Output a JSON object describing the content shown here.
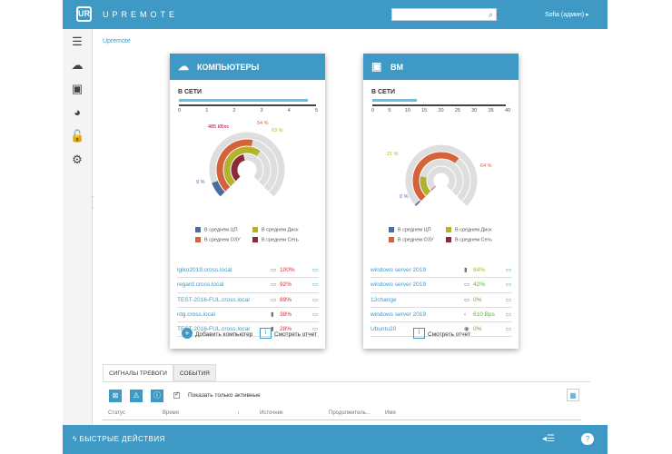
{
  "app": {
    "brand": "UPREMOTE",
    "logo": "UR",
    "user": "Sofia (админ)"
  },
  "breadcrumb": "Upremote",
  "comp_card": {
    "title": "КОМПЬЮТЕРЫ",
    "status": "В СЕТИ",
    "ticks": [
      "0",
      "1",
      "2",
      "3",
      "4",
      "5"
    ],
    "online_fraction": 0.94,
    "labels": {
      "net": "485 КБпс",
      "cpu": "9 %",
      "ram": "54 %",
      "disk": "63 %"
    },
    "legend": [
      "В среднем ЦП",
      "В среднем Диск",
      "В среднем ОЗУ",
      "В среднем Сеть"
    ],
    "rows": [
      {
        "name": "lgiko2019.cross.local",
        "val": "100%"
      },
      {
        "name": "regard.cross.local",
        "val": "92%"
      },
      {
        "name": "TEST-2016-FUL.cross.local",
        "val": "89%"
      },
      {
        "name": "rdg.cross.local",
        "val": "38%"
      },
      {
        "name": "TEST-2016-FUL.cross.local",
        "val": "28%"
      }
    ],
    "add": "Добавить компьютер",
    "report": "Смотреть отчет"
  },
  "vm_card": {
    "title": "ВМ",
    "status": "В СЕТИ",
    "ticks": [
      "0",
      "5",
      "10",
      "15",
      "20",
      "25",
      "30",
      "35",
      "40"
    ],
    "online_fraction": 0.33,
    "labels": {
      "disk": "21 %",
      "ram": "64 %",
      "cpu": "0 %"
    },
    "legend": [
      "В среднем ЦП",
      "В среднем Диск",
      "В среднем ОЗУ",
      "В среднем Сеть"
    ],
    "rows": [
      {
        "name": "windows server 2019",
        "val": "84%"
      },
      {
        "name": "windows server 2019",
        "val": "42%"
      },
      {
        "name": "12change",
        "val": "0%"
      },
      {
        "name": "windows server 2019",
        "val": "610 Bps"
      },
      {
        "name": "Ubuntu20",
        "val": "0%"
      }
    ],
    "report": "Смотреть отчет"
  },
  "tabs": [
    "СИГНАЛЫ ТРЕВОГИ",
    "СОБЫТИЯ"
  ],
  "toolbar": {
    "checkbox": "Показать только активные"
  },
  "columns": [
    "Статус",
    "Время",
    "Источник",
    "Продолжитель...",
    "Имя"
  ],
  "bottom": {
    "quick": "БЫСТРЫЕ ДЕЙСТВИЯ"
  },
  "colors": {
    "accent": "#3e9ac5",
    "cpu": "#4c6e9e",
    "disk": "#b2b22e",
    "ram": "#d4623a",
    "net": "#8d2a3a"
  }
}
